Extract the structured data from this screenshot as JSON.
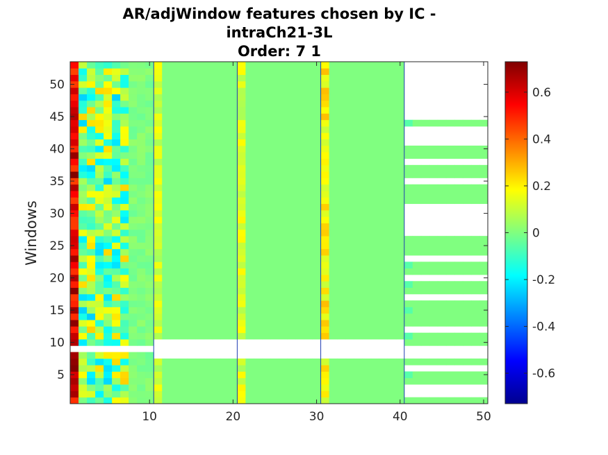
{
  "chart_data": {
    "type": "heatmap",
    "title_lines": [
      "AR/adjWindow features chosen by IC -",
      "intraCh21-3L",
      "Order: 7 1"
    ],
    "xlabel": "",
    "ylabel": "Windows",
    "xlim": [
      0.5,
      50.5
    ],
    "ylim": [
      0.5,
      53.5
    ],
    "x_ticks": [
      10,
      20,
      30,
      40,
      50
    ],
    "x_tick_labels": [
      "10",
      "20",
      "30",
      "40",
      "50"
    ],
    "y_ticks": [
      5,
      10,
      15,
      20,
      25,
      30,
      35,
      40,
      45,
      50
    ],
    "y_tick_labels": [
      "5",
      "10",
      "15",
      "20",
      "25",
      "30",
      "35",
      "40",
      "45",
      "50"
    ],
    "colorbar": {
      "colormap": "jet",
      "clim": [
        -0.73,
        0.73
      ],
      "ticks": [
        0.6,
        0.4,
        0.2,
        0,
        -0.2,
        -0.4,
        -0.6
      ],
      "tick_labels": [
        "0.6",
        "0.4",
        "0.2",
        "0",
        "-0.2",
        "-0.4",
        "-0.6"
      ]
    },
    "n_rows": 53,
    "n_cols": 50,
    "missing_rows_cols_1_40": [
      9
    ],
    "missing_rows_cols_11_40": [
      8,
      10
    ],
    "present_rows_cols_41_50": [
      1,
      4,
      5,
      7,
      10,
      11,
      13,
      14,
      15,
      16,
      18,
      19,
      21,
      22,
      24,
      25,
      26,
      32,
      33,
      34,
      36,
      37,
      39,
      40,
      44
    ],
    "divider_columns": [
      10.5,
      20.5,
      30.5,
      40.5
    ],
    "column_profiles": {
      "col_1": "strong positive, 0.45 to 0.73 (red / dark red)",
      "cols_2_7": "mixed, -0.25 to 0.25 (cyan to yellow)",
      "cols_8_10": "near 0, light green",
      "col_11": "slightly positive, about 0.05 to 0.18",
      "cols_12_20": "0, light green",
      "col_21": "slightly positive, about 0.05 to 0.2",
      "cols_22_30": "0, light green",
      "col_31": "positive, about 0.1 to 0.28",
      "cols_32_40": "0, light green",
      "col_41": "near 0, occasionally slightly negative",
      "cols_42_50": "0, light green"
    }
  }
}
